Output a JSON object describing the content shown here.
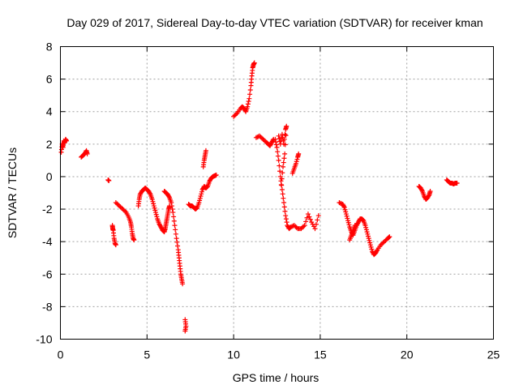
{
  "chart_data": {
    "type": "scatter",
    "title": "Day 029 of 2017, Sidereal Day-to-day VTEC variation (SDTVAR) for receiver kman",
    "xlabel": "GPS time / hours",
    "ylabel": "SDTVAR / TECUs",
    "xlim": [
      0,
      25
    ],
    "ylim": [
      -10,
      8
    ],
    "xticks": [
      "0",
      "5",
      "10",
      "15",
      "20",
      "25"
    ],
    "yticks": [
      "-10",
      "-8",
      "-6",
      "-4",
      "-2",
      "0",
      "2",
      "4",
      "6",
      "8"
    ],
    "xtick_values": [
      0,
      5,
      10,
      15,
      20,
      25
    ],
    "ytick_values": [
      -10,
      -8,
      -6,
      -4,
      -2,
      0,
      2,
      4,
      6,
      8
    ],
    "grid": true,
    "marker": "+",
    "color": "#ff0000",
    "segments": [
      [
        [
          0.05,
          1.5
        ],
        [
          0.1,
          2.0
        ],
        [
          0.15,
          1.8
        ],
        [
          0.2,
          2.2
        ],
        [
          0.25,
          2.1
        ],
        [
          0.3,
          2.3
        ],
        [
          0.35,
          2.2
        ]
      ],
      [
        [
          1.2,
          1.2
        ],
        [
          1.3,
          1.3
        ],
        [
          1.4,
          1.4
        ],
        [
          1.5,
          1.6
        ],
        [
          1.55,
          1.4
        ]
      ],
      [
        [
          2.75,
          -0.2
        ],
        [
          2.8,
          -0.25
        ]
      ],
      [
        [
          3.0,
          -3.0
        ],
        [
          3.02,
          -3.2
        ],
        [
          3.05,
          -3.3
        ],
        [
          3.1,
          -3.8
        ],
        [
          3.15,
          -4.1
        ],
        [
          3.2,
          -4.2
        ]
      ],
      [
        [
          3.2,
          -1.6
        ],
        [
          3.4,
          -1.8
        ],
        [
          3.6,
          -2.0
        ],
        [
          3.8,
          -2.2
        ],
        [
          3.95,
          -2.5
        ],
        [
          4.05,
          -2.8
        ],
        [
          4.1,
          -3.1
        ],
        [
          4.15,
          -3.5
        ],
        [
          4.2,
          -3.8
        ],
        [
          4.25,
          -3.9
        ]
      ],
      [
        [
          4.5,
          -1.8
        ],
        [
          4.55,
          -1.4
        ],
        [
          4.6,
          -1.1
        ],
        [
          4.7,
          -0.9
        ],
        [
          4.8,
          -0.8
        ],
        [
          4.9,
          -0.7
        ],
        [
          5.0,
          -0.8
        ],
        [
          5.1,
          -0.9
        ],
        [
          5.2,
          -1.1
        ],
        [
          5.3,
          -1.4
        ],
        [
          5.4,
          -1.8
        ],
        [
          5.5,
          -2.2
        ],
        [
          5.6,
          -2.6
        ],
        [
          5.7,
          -2.9
        ],
        [
          5.8,
          -3.1
        ],
        [
          5.9,
          -3.3
        ],
        [
          6.0,
          -3.4
        ],
        [
          6.05,
          -3.2
        ],
        [
          6.1,
          -2.9
        ],
        [
          6.15,
          -2.6
        ],
        [
          6.2,
          -2.3
        ],
        [
          6.25,
          -2.0
        ],
        [
          6.3,
          -1.8
        ]
      ],
      [
        [
          6.0,
          -0.9
        ],
        [
          6.1,
          -1.0
        ],
        [
          6.2,
          -1.1
        ],
        [
          6.3,
          -1.3
        ],
        [
          6.4,
          -1.6
        ],
        [
          6.5,
          -2.2
        ],
        [
          6.6,
          -3.0
        ],
        [
          6.7,
          -3.8
        ],
        [
          6.8,
          -4.5
        ],
        [
          6.85,
          -5.0
        ],
        [
          6.9,
          -5.5
        ],
        [
          6.95,
          -6.0
        ],
        [
          7.0,
          -6.3
        ],
        [
          7.05,
          -6.6
        ]
      ],
      [
        [
          7.2,
          -8.8
        ],
        [
          7.25,
          -9.2
        ],
        [
          7.2,
          -9.5
        ]
      ],
      [
        [
          7.4,
          -1.7
        ],
        [
          7.5,
          -1.8
        ],
        [
          7.6,
          -1.8
        ],
        [
          7.7,
          -1.9
        ],
        [
          7.8,
          -2.0
        ],
        [
          7.9,
          -1.9
        ],
        [
          8.0,
          -1.6
        ],
        [
          8.1,
          -1.2
        ],
        [
          8.2,
          -0.8
        ],
        [
          8.3,
          -0.6
        ],
        [
          8.4,
          -0.7
        ],
        [
          8.5,
          -0.6
        ],
        [
          8.6,
          -0.3
        ],
        [
          8.7,
          -0.1
        ],
        [
          8.8,
          0.0
        ],
        [
          8.9,
          0.05
        ],
        [
          9.0,
          0.1
        ]
      ],
      [
        [
          8.25,
          0.6
        ],
        [
          8.3,
          1.0
        ],
        [
          8.35,
          1.3
        ],
        [
          8.4,
          1.6
        ]
      ],
      [
        [
          10.0,
          3.7
        ],
        [
          10.2,
          3.9
        ],
        [
          10.4,
          4.2
        ],
        [
          10.5,
          4.3
        ],
        [
          10.6,
          4.2
        ],
        [
          10.7,
          4.0
        ],
        [
          10.8,
          4.3
        ],
        [
          10.9,
          4.8
        ],
        [
          11.0,
          5.6
        ],
        [
          11.05,
          6.2
        ],
        [
          11.1,
          6.7
        ],
        [
          11.15,
          6.9
        ],
        [
          11.2,
          7.0
        ]
      ],
      [
        [
          11.3,
          2.4
        ],
        [
          11.5,
          2.5
        ],
        [
          11.7,
          2.3
        ],
        [
          11.9,
          2.1
        ],
        [
          12.0,
          2.0
        ],
        [
          12.1,
          1.9
        ],
        [
          12.2,
          2.1
        ],
        [
          12.3,
          2.3
        ]
      ],
      [
        [
          12.4,
          2.3
        ],
        [
          12.5,
          1.8
        ],
        [
          12.6,
          1.0
        ],
        [
          12.7,
          0.0
        ],
        [
          12.8,
          -0.8
        ],
        [
          12.9,
          -1.6
        ],
        [
          13.0,
          -2.4
        ],
        [
          13.1,
          -3.0
        ],
        [
          13.2,
          -3.2
        ],
        [
          13.3,
          -3.1
        ],
        [
          13.5,
          -3.0
        ],
        [
          13.7,
          -3.2
        ],
        [
          13.9,
          -3.2
        ],
        [
          14.1,
          -3.0
        ],
        [
          14.3,
          -2.3
        ],
        [
          14.5,
          -2.8
        ],
        [
          14.7,
          -3.2
        ],
        [
          14.9,
          -2.4
        ]
      ],
      [
        [
          12.6,
          2.5
        ],
        [
          12.7,
          2.0
        ],
        [
          12.8,
          2.6
        ],
        [
          12.9,
          2.0
        ],
        [
          13.0,
          2.9
        ],
        [
          13.05,
          3.1
        ],
        [
          12.95,
          1.4
        ],
        [
          12.85,
          0.6
        ],
        [
          12.75,
          -0.5
        ]
      ],
      [
        [
          13.4,
          0.2
        ],
        [
          13.5,
          0.5
        ],
        [
          13.6,
          0.8
        ],
        [
          13.7,
          1.2
        ],
        [
          13.75,
          1.4
        ]
      ],
      [
        [
          16.1,
          -1.6
        ],
        [
          16.3,
          -1.7
        ],
        [
          16.4,
          -1.9
        ],
        [
          16.5,
          -2.3
        ],
        [
          16.6,
          -2.7
        ],
        [
          16.7,
          -3.1
        ],
        [
          16.8,
          -3.4
        ],
        [
          16.9,
          -3.6
        ],
        [
          17.0,
          -3.3
        ],
        [
          17.1,
          -3.0
        ],
        [
          17.2,
          -2.8
        ],
        [
          17.3,
          -2.6
        ],
        [
          17.4,
          -2.6
        ],
        [
          17.5,
          -2.7
        ],
        [
          17.6,
          -3.0
        ],
        [
          17.7,
          -3.4
        ],
        [
          17.8,
          -3.8
        ],
        [
          17.9,
          -4.2
        ],
        [
          18.0,
          -4.6
        ],
        [
          18.1,
          -4.8
        ],
        [
          18.2,
          -4.7
        ],
        [
          18.3,
          -4.5
        ],
        [
          18.5,
          -4.2
        ],
        [
          18.7,
          -4.0
        ],
        [
          18.9,
          -3.8
        ],
        [
          19.0,
          -3.7
        ]
      ],
      [
        [
          16.7,
          -3.9
        ],
        [
          16.8,
          -3.6
        ],
        [
          16.9,
          -3.3
        ],
        [
          17.0,
          -3.0
        ]
      ],
      [
        [
          20.7,
          -0.6
        ],
        [
          20.8,
          -0.7
        ],
        [
          20.9,
          -0.9
        ],
        [
          21.0,
          -1.2
        ],
        [
          21.1,
          -1.4
        ],
        [
          21.2,
          -1.3
        ],
        [
          21.3,
          -1.1
        ],
        [
          21.35,
          -0.9
        ]
      ],
      [
        [
          22.3,
          -0.2
        ],
        [
          22.4,
          -0.3
        ],
        [
          22.5,
          -0.4
        ],
        [
          22.6,
          -0.4
        ],
        [
          22.7,
          -0.45
        ],
        [
          22.8,
          -0.4
        ],
        [
          22.9,
          -0.4
        ]
      ]
    ]
  }
}
